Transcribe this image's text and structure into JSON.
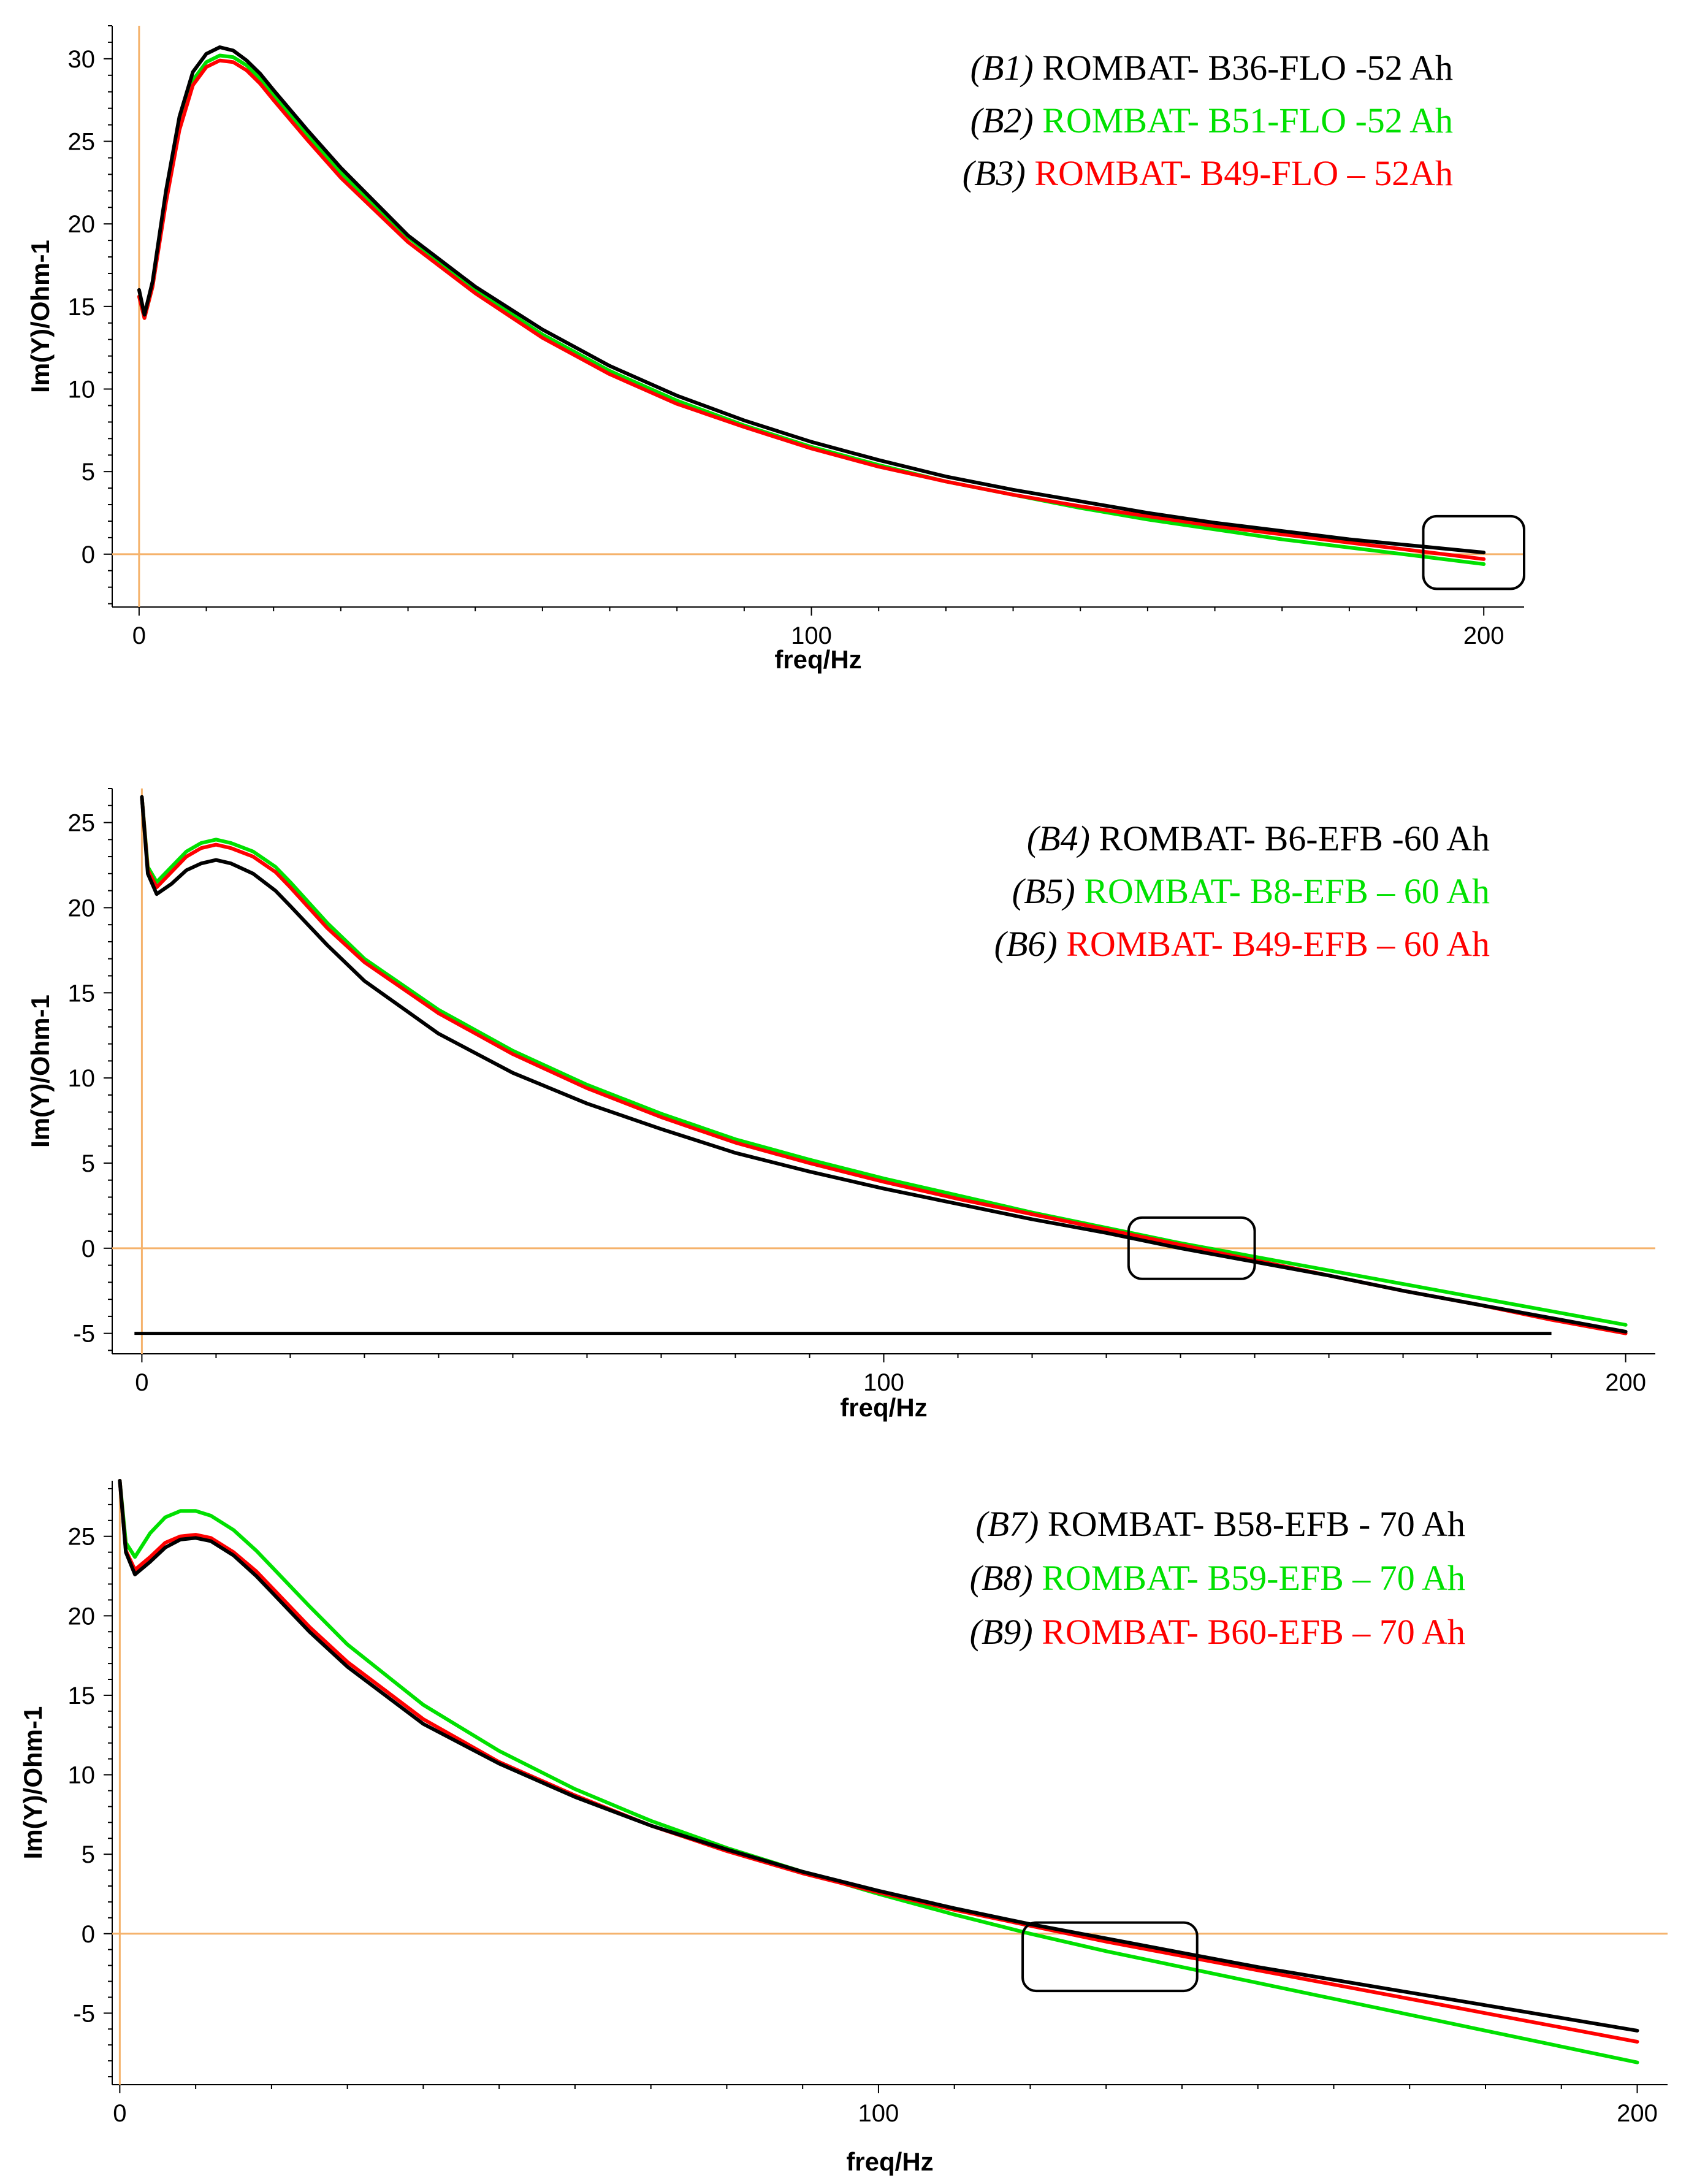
{
  "chart_data": [
    {
      "type": "line",
      "xlabel": "freq/Hz",
      "ylabel": "Im(Y)/Ohm-1",
      "xlim": [
        -4,
        206
      ],
      "ylim": [
        -3.2,
        32
      ],
      "xticks": [
        0,
        100,
        200
      ],
      "yticks": [
        0,
        5,
        10,
        15,
        20,
        25,
        30
      ],
      "legend_position": "top-right",
      "legend": [
        {
          "id": "(B1)",
          "label": "ROMBAT- B36-FLO -52 Ah",
          "color": "#000000"
        },
        {
          "id": "(B2)",
          "label": "ROMBAT- B51-FLO -52 Ah",
          "color": "#00e000"
        },
        {
          "id": "(B3)",
          "label": "ROMBAT- B49-FLO – 52Ah",
          "color": "#ff0000"
        }
      ],
      "highlight_box": {
        "x": [
          191,
          206
        ],
        "y": [
          -2.1,
          2.3
        ]
      },
      "series": [
        {
          "name": "B1",
          "color": "#000000",
          "x": [
            0,
            0.8,
            2,
            4,
            6,
            8,
            10,
            12,
            14,
            16,
            18,
            20,
            25,
            30,
            40,
            50,
            60,
            70,
            80,
            90,
            100,
            110,
            120,
            130,
            140,
            150,
            160,
            170,
            180,
            190,
            200
          ],
          "y": [
            16,
            14.5,
            16.5,
            22,
            26.5,
            29.2,
            30.3,
            30.7,
            30.5,
            29.9,
            29.1,
            28.1,
            25.7,
            23.4,
            19.3,
            16.2,
            13.6,
            11.4,
            9.6,
            8.1,
            6.8,
            5.7,
            4.7,
            3.9,
            3.2,
            2.5,
            1.9,
            1.4,
            0.9,
            0.5,
            0.1
          ]
        },
        {
          "name": "B2",
          "color": "#00e000",
          "x": [
            0,
            0.8,
            2,
            4,
            6,
            8,
            10,
            12,
            14,
            16,
            18,
            20,
            25,
            30,
            40,
            50,
            60,
            70,
            80,
            90,
            100,
            110,
            120,
            130,
            140,
            150,
            160,
            170,
            180,
            190,
            200
          ],
          "y": [
            15.6,
            14.3,
            16.2,
            21.5,
            26,
            28.7,
            29.8,
            30.2,
            30.1,
            29.6,
            28.8,
            27.8,
            25.4,
            23.1,
            19.2,
            16,
            13.3,
            11.1,
            9.3,
            7.8,
            6.5,
            5.4,
            4.4,
            3.6,
            2.8,
            2.1,
            1.5,
            0.9,
            0.4,
            -0.1,
            -0.6
          ]
        },
        {
          "name": "B3",
          "color": "#ff0000",
          "x": [
            0,
            0.8,
            2,
            4,
            6,
            8,
            10,
            12,
            14,
            16,
            18,
            20,
            25,
            30,
            40,
            50,
            60,
            70,
            80,
            90,
            100,
            110,
            120,
            130,
            140,
            150,
            160,
            170,
            180,
            190,
            200
          ],
          "y": [
            15.6,
            14.3,
            16.2,
            21.3,
            25.7,
            28.4,
            29.5,
            29.9,
            29.8,
            29.3,
            28.5,
            27.5,
            25.1,
            22.8,
            18.9,
            15.8,
            13.1,
            10.9,
            9.1,
            7.7,
            6.4,
            5.3,
            4.4,
            3.6,
            2.9,
            2.3,
            1.7,
            1.2,
            0.7,
            0.2,
            -0.3
          ]
        }
      ]
    },
    {
      "type": "line",
      "xlabel": "freq/Hz",
      "ylabel": "Im(Y)/Ohm-1",
      "xlim": [
        -4,
        204
      ],
      "ylim": [
        -6.2,
        27
      ],
      "xticks": [
        0,
        100,
        200
      ],
      "yticks": [
        -5,
        0,
        5,
        10,
        15,
        20,
        25
      ],
      "legend_position": "top-right",
      "legend": [
        {
          "id": "(B4)",
          "label": "ROMBAT- B6-EFB -60 Ah",
          "color": "#000000"
        },
        {
          "id": "(B5)",
          "label": "ROMBAT- B8-EFB – 60 Ah",
          "color": "#00e000"
        },
        {
          "id": "(B6)",
          "label": "ROMBAT- B49-EFB – 60 Ah",
          "color": "#ff0000"
        }
      ],
      "highlight_box": {
        "x": [
          133,
          150
        ],
        "y": [
          -1.8,
          1.8
        ]
      },
      "baseline": {
        "x": [
          -1,
          190
        ],
        "y": -5
      },
      "series": [
        {
          "name": "B4",
          "color": "#000000",
          "x": [
            0,
            0.8,
            2,
            4,
            6,
            8,
            10,
            12,
            15,
            18,
            20,
            25,
            30,
            40,
            50,
            60,
            70,
            80,
            90,
            100,
            110,
            120,
            130,
            140,
            150,
            160,
            170,
            180,
            190,
            200
          ],
          "y": [
            26.5,
            22,
            20.8,
            21.4,
            22.2,
            22.6,
            22.8,
            22.6,
            22,
            21,
            20.1,
            17.8,
            15.7,
            12.6,
            10.3,
            8.5,
            7,
            5.6,
            4.5,
            3.5,
            2.6,
            1.7,
            0.9,
            0,
            -0.8,
            -1.6,
            -2.5,
            -3.3,
            -4.1,
            -4.9
          ]
        },
        {
          "name": "B5",
          "color": "#00e000",
          "x": [
            0,
            0.8,
            2,
            4,
            6,
            8,
            10,
            12,
            15,
            18,
            20,
            25,
            30,
            40,
            50,
            60,
            70,
            80,
            90,
            100,
            110,
            120,
            130,
            140,
            150,
            160,
            170,
            180,
            190,
            200
          ],
          "y": [
            26.5,
            22.4,
            21.5,
            22.4,
            23.3,
            23.8,
            24,
            23.8,
            23.3,
            22.4,
            21.5,
            19.1,
            17,
            14,
            11.6,
            9.6,
            7.9,
            6.4,
            5.2,
            4.1,
            3.1,
            2.1,
            1.2,
            0.3,
            -0.5,
            -1.3,
            -2.1,
            -2.9,
            -3.7,
            -4.5
          ]
        },
        {
          "name": "B6",
          "color": "#ff0000",
          "x": [
            0,
            0.8,
            2,
            4,
            6,
            8,
            10,
            12,
            15,
            18,
            20,
            25,
            30,
            40,
            50,
            60,
            70,
            80,
            90,
            100,
            110,
            120,
            130,
            140,
            150,
            160,
            170,
            180,
            190,
            200
          ],
          "y": [
            26.5,
            22.2,
            21.2,
            22.1,
            23,
            23.5,
            23.7,
            23.5,
            23,
            22.1,
            21.2,
            18.8,
            16.8,
            13.8,
            11.4,
            9.4,
            7.7,
            6.2,
            5,
            3.9,
            2.9,
            2,
            1.1,
            0.2,
            -0.7,
            -1.6,
            -2.5,
            -3.3,
            -4.2,
            -5
          ]
        }
      ]
    },
    {
      "type": "line",
      "xlabel": "freq/Hz",
      "ylabel": "Im(Y)/Ohm-1",
      "xlim": [
        -1,
        204
      ],
      "ylim": [
        -9.5,
        28.5
      ],
      "xticks": [
        0,
        100,
        200
      ],
      "yticks": [
        -5,
        0,
        5,
        10,
        15,
        20,
        25
      ],
      "legend_position": "top-right",
      "legend": [
        {
          "id": "(B7)",
          "label": "ROMBAT- B58-EFB - 70 Ah",
          "color": "#000000"
        },
        {
          "id": "(B8)",
          "label": "ROMBAT- B59-EFB – 70 Ah",
          "color": "#00e000"
        },
        {
          "id": "(B9)",
          "label": "ROMBAT- B60-EFB – 70 Ah",
          "color": "#ff0000"
        }
      ],
      "highlight_box": {
        "x": [
          119,
          142
        ],
        "y": [
          -3.6,
          0.7
        ]
      },
      "series": [
        {
          "name": "B7",
          "color": "#000000",
          "x": [
            0,
            0.8,
            2,
            4,
            6,
            8,
            10,
            12,
            15,
            18,
            20,
            25,
            30,
            40,
            50,
            60,
            70,
            80,
            90,
            100,
            110,
            120,
            130,
            140,
            150,
            160,
            170,
            180,
            190,
            200
          ],
          "y": [
            28.5,
            24,
            22.6,
            23.4,
            24.3,
            24.8,
            24.9,
            24.7,
            23.8,
            22.5,
            21.5,
            19,
            16.8,
            13.2,
            10.7,
            8.6,
            6.8,
            5.3,
            3.9,
            2.7,
            1.6,
            0.6,
            -0.3,
            -1.2,
            -2.1,
            -2.9,
            -3.7,
            -4.5,
            -5.3,
            -6.1
          ]
        },
        {
          "name": "B8",
          "color": "#00e000",
          "x": [
            0,
            0.8,
            2,
            4,
            6,
            8,
            10,
            12,
            15,
            18,
            20,
            25,
            30,
            40,
            50,
            60,
            70,
            80,
            90,
            100,
            110,
            120,
            130,
            140,
            150,
            160,
            170,
            180,
            190,
            200
          ],
          "y": [
            28.5,
            24.6,
            23.7,
            25.2,
            26.2,
            26.6,
            26.6,
            26.3,
            25.4,
            24.1,
            23.1,
            20.6,
            18.2,
            14.4,
            11.5,
            9.1,
            7.1,
            5.4,
            3.9,
            2.5,
            1.2,
            0,
            -1.1,
            -2.1,
            -3.1,
            -4.1,
            -5.1,
            -6.1,
            -7.1,
            -8.1
          ]
        },
        {
          "name": "B9",
          "color": "#ff0000",
          "x": [
            0,
            0.8,
            2,
            4,
            6,
            8,
            10,
            12,
            15,
            18,
            20,
            25,
            30,
            40,
            50,
            60,
            70,
            80,
            90,
            100,
            110,
            120,
            130,
            140,
            150,
            160,
            170,
            180,
            190,
            200
          ],
          "y": [
            28.5,
            24.1,
            22.9,
            23.7,
            24.6,
            25,
            25.1,
            24.9,
            24,
            22.8,
            21.8,
            19.3,
            17.1,
            13.5,
            10.8,
            8.7,
            6.8,
            5.2,
            3.8,
            2.6,
            1.5,
            0.5,
            -0.5,
            -1.4,
            -2.3,
            -3.2,
            -4.1,
            -5,
            -5.9,
            -6.8
          ]
        }
      ]
    }
  ]
}
